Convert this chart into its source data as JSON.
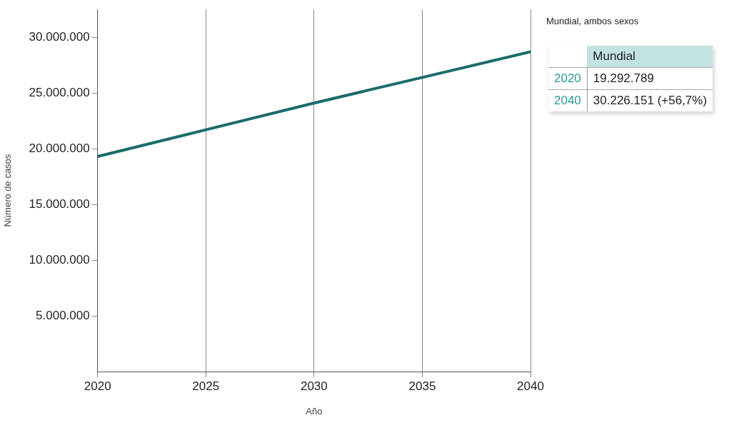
{
  "chart_data": {
    "type": "line",
    "xlabel": "Año",
    "ylabel": "Número de casos",
    "x": [
      2020,
      2025,
      2030,
      2035,
      2040
    ],
    "series": [
      {
        "color": "#1b6b6b",
        "values": [
          19300000,
          21700000,
          24100000,
          26400000,
          28700000
        ]
      }
    ],
    "xlim": [
      2020,
      2040
    ],
    "xticks": [
      2020,
      2025,
      2030,
      2035,
      2040
    ],
    "ylim": [
      0,
      32500000
    ],
    "yticks": [
      {
        "value": 5000000,
        "label": "5.000.000"
      },
      {
        "value": 10000000,
        "label": "10.000.000"
      },
      {
        "value": 15000000,
        "label": "15.000.000"
      },
      {
        "value": 20000000,
        "label": "20.000.000"
      },
      {
        "value": 25000000,
        "label": "25.000.000"
      },
      {
        "value": 30000000,
        "label": "30.000.000"
      }
    ],
    "grid": "x",
    "legend": false,
    "marker": "none",
    "line_style": "solid",
    "annotations": [
      "Mundial, ambos sexos",
      "Mundial",
      "2020",
      "19.292.789",
      "2040",
      "30.226.151 (+56,7%)"
    ]
  }
}
